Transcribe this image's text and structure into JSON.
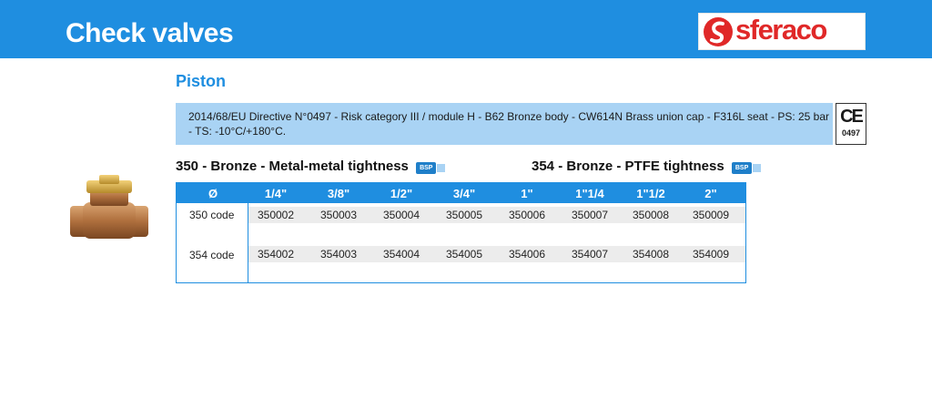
{
  "header": {
    "title": "Check valves",
    "brand_colors": {
      "bar": "#1f8ee0",
      "logo": "#e02828"
    }
  },
  "logo": {
    "text": "sferaco"
  },
  "subtitle": "Piston",
  "description": "2014/68/EU Directive N°0497 - Risk category III / module H - B62 Bronze body - CW614N Brass union cap - F316L seat - PS: 25 bar - TS: -10°C/+180°C.",
  "ce": {
    "mark": "CE",
    "number": "0497"
  },
  "sections": [
    {
      "title": "350 - Bronze - Metal-metal tightness",
      "badge": "BSP"
    },
    {
      "title": "354 - Bronze - PTFE tightness",
      "badge": "BSP"
    }
  ],
  "table": {
    "headers": [
      "Ø",
      "1/4\"",
      "3/8\"",
      "1/2\"",
      "3/4\"",
      "1\"",
      "1\"1/4",
      "1\"1/2",
      "2\""
    ],
    "rows": [
      {
        "label": "350 code",
        "values": [
          "350002",
          "350003",
          "350004",
          "350005",
          "350006",
          "350007",
          "350008",
          "350009"
        ]
      },
      {
        "label": "354 code",
        "values": [
          "354002",
          "354003",
          "354004",
          "354005",
          "354006",
          "354007",
          "354008",
          "354009"
        ]
      }
    ]
  }
}
